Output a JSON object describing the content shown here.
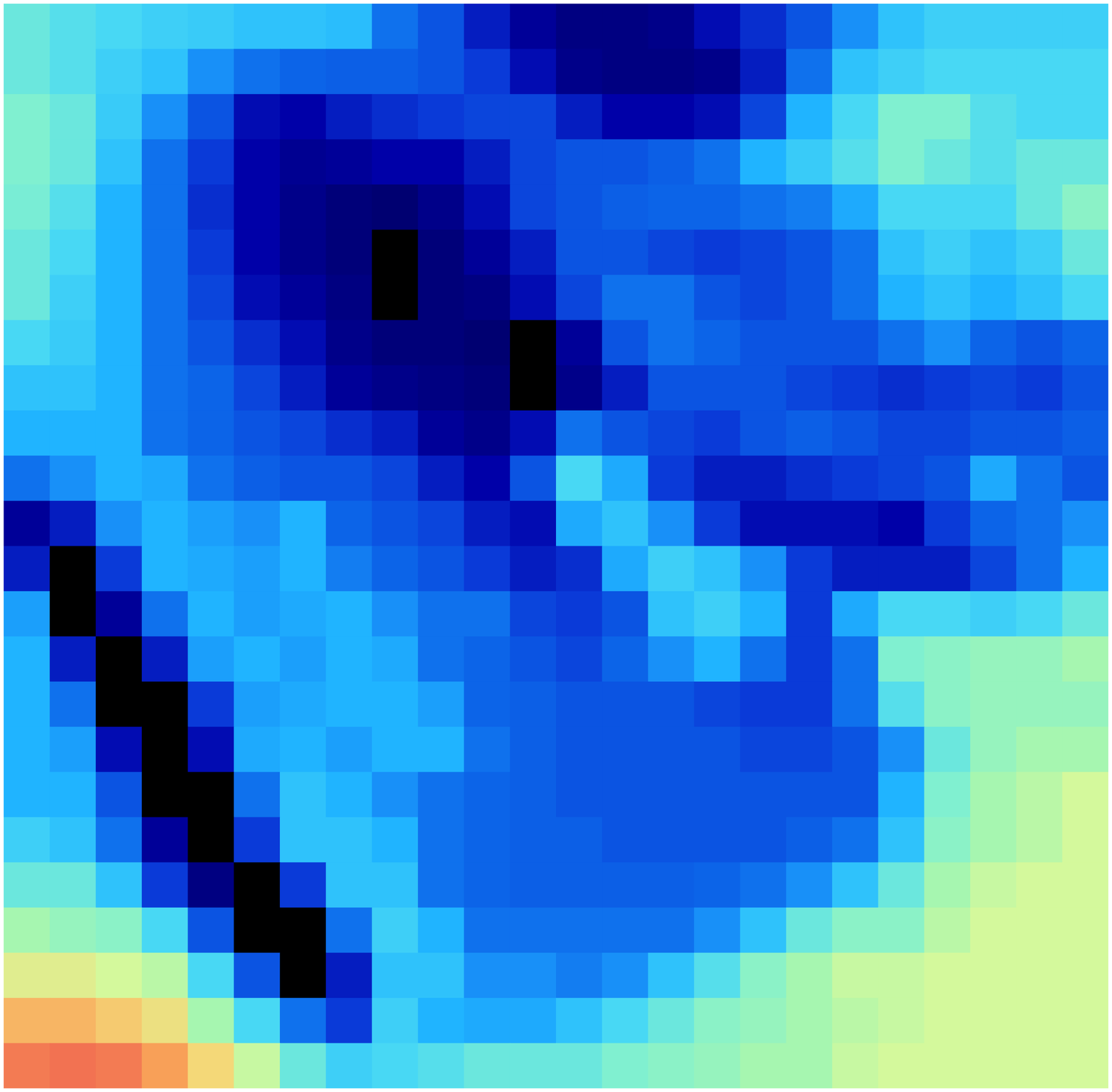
{
  "chart_data": {
    "type": "heatmap",
    "tick_labels": false,
    "zlim": [
      0,
      1
    ],
    "cells": [
      [
        0.55,
        0.52,
        0.5,
        0.48,
        0.47,
        0.45,
        0.45,
        0.44,
        0.3,
        0.25,
        0.15,
        0.08,
        0.05,
        0.05,
        0.06,
        0.12,
        0.18,
        0.25,
        0.35,
        0.45,
        0.48,
        0.48,
        0.48,
        0.48
      ],
      [
        0.55,
        0.52,
        0.48,
        0.45,
        0.35,
        0.3,
        0.28,
        0.27,
        0.27,
        0.25,
        0.2,
        0.12,
        0.06,
        0.05,
        0.05,
        0.06,
        0.15,
        0.3,
        0.45,
        0.48,
        0.5,
        0.5,
        0.5,
        0.5
      ],
      [
        0.58,
        0.55,
        0.47,
        0.35,
        0.25,
        0.12,
        0.1,
        0.15,
        0.18,
        0.2,
        0.22,
        0.22,
        0.15,
        0.1,
        0.1,
        0.12,
        0.22,
        0.42,
        0.5,
        0.58,
        0.58,
        0.52,
        0.5,
        0.5
      ],
      [
        0.58,
        0.55,
        0.45,
        0.3,
        0.2,
        0.1,
        0.07,
        0.08,
        0.1,
        0.1,
        0.15,
        0.22,
        0.25,
        0.25,
        0.27,
        0.3,
        0.42,
        0.47,
        0.52,
        0.58,
        0.55,
        0.52,
        0.55,
        0.55
      ],
      [
        0.57,
        0.52,
        0.42,
        0.3,
        0.18,
        0.1,
        0.06,
        0.04,
        0.03,
        0.06,
        0.12,
        0.22,
        0.25,
        0.27,
        0.28,
        0.28,
        0.3,
        0.32,
        0.4,
        0.5,
        0.5,
        0.5,
        0.55,
        0.6
      ],
      [
        0.55,
        0.5,
        0.42,
        0.3,
        0.2,
        0.1,
        0.06,
        0.04,
        -0.1,
        0.04,
        0.08,
        0.15,
        0.25,
        0.25,
        0.22,
        0.2,
        0.22,
        0.25,
        0.3,
        0.45,
        0.48,
        0.45,
        0.48,
        0.55
      ],
      [
        0.55,
        0.48,
        0.42,
        0.3,
        0.22,
        0.12,
        0.08,
        0.05,
        -0.1,
        0.04,
        0.05,
        0.12,
        0.22,
        0.3,
        0.3,
        0.25,
        0.22,
        0.25,
        0.3,
        0.42,
        0.45,
        0.42,
        0.45,
        0.5
      ],
      [
        0.5,
        0.47,
        0.42,
        0.3,
        0.25,
        0.18,
        0.12,
        0.06,
        0.04,
        0.04,
        0.03,
        -0.1,
        0.08,
        0.25,
        0.3,
        0.28,
        0.25,
        0.25,
        0.25,
        0.3,
        0.35,
        0.28,
        0.25,
        0.28
      ],
      [
        0.45,
        0.45,
        0.42,
        0.3,
        0.28,
        0.22,
        0.15,
        0.08,
        0.06,
        0.05,
        0.04,
        -0.1,
        0.06,
        0.15,
        0.25,
        0.25,
        0.25,
        0.22,
        0.2,
        0.18,
        0.2,
        0.22,
        0.2,
        0.25
      ],
      [
        0.42,
        0.42,
        0.42,
        0.3,
        0.28,
        0.25,
        0.22,
        0.18,
        0.15,
        0.08,
        0.06,
        0.12,
        0.3,
        0.25,
        0.22,
        0.2,
        0.25,
        0.27,
        0.25,
        0.22,
        0.22,
        0.25,
        0.25,
        0.27
      ],
      [
        0.3,
        0.35,
        0.42,
        0.4,
        0.3,
        0.27,
        0.25,
        0.25,
        0.22,
        0.15,
        0.1,
        0.25,
        0.5,
        0.4,
        0.2,
        0.15,
        0.15,
        0.18,
        0.2,
        0.22,
        0.25,
        0.4,
        0.3,
        0.25
      ],
      [
        0.08,
        0.15,
        0.35,
        0.42,
        0.38,
        0.35,
        0.42,
        0.28,
        0.25,
        0.22,
        0.15,
        0.12,
        0.4,
        0.45,
        0.35,
        0.2,
        0.12,
        0.12,
        0.12,
        0.1,
        0.2,
        0.28,
        0.3,
        0.35
      ],
      [
        0.15,
        -0.1,
        0.2,
        0.42,
        0.4,
        0.38,
        0.42,
        0.32,
        0.28,
        0.25,
        0.2,
        0.15,
        0.18,
        0.4,
        0.48,
        0.45,
        0.35,
        0.2,
        0.15,
        0.15,
        0.15,
        0.22,
        0.3,
        0.42
      ],
      [
        0.38,
        -0.1,
        0.08,
        0.3,
        0.42,
        0.38,
        0.4,
        0.42,
        0.35,
        0.3,
        0.3,
        0.22,
        0.2,
        0.25,
        0.45,
        0.48,
        0.42,
        0.2,
        0.4,
        0.5,
        0.5,
        0.48,
        0.5,
        0.55
      ],
      [
        0.42,
        0.15,
        -0.1,
        0.15,
        0.38,
        0.42,
        0.38,
        0.42,
        0.4,
        0.3,
        0.28,
        0.25,
        0.22,
        0.28,
        0.35,
        0.42,
        0.3,
        0.2,
        0.3,
        0.58,
        0.6,
        0.62,
        0.62,
        0.65
      ],
      [
        0.42,
        0.3,
        -0.1,
        -0.1,
        0.2,
        0.38,
        0.4,
        0.42,
        0.42,
        0.38,
        0.28,
        0.27,
        0.25,
        0.25,
        0.25,
        0.22,
        0.2,
        0.2,
        0.3,
        0.52,
        0.6,
        0.62,
        0.62,
        0.62
      ],
      [
        0.42,
        0.38,
        0.12,
        -0.1,
        0.12,
        0.4,
        0.42,
        0.38,
        0.42,
        0.42,
        0.3,
        0.27,
        0.25,
        0.25,
        0.25,
        0.25,
        0.22,
        0.22,
        0.25,
        0.35,
        0.55,
        0.62,
        0.65,
        0.65
      ],
      [
        0.42,
        0.42,
        0.25,
        -0.1,
        -0.1,
        0.3,
        0.45,
        0.42,
        0.35,
        0.3,
        0.28,
        0.27,
        0.25,
        0.25,
        0.25,
        0.25,
        0.25,
        0.25,
        0.25,
        0.42,
        0.58,
        0.65,
        0.68,
        0.72
      ],
      [
        0.48,
        0.45,
        0.3,
        0.08,
        -0.1,
        0.2,
        0.45,
        0.45,
        0.42,
        0.3,
        0.28,
        0.27,
        0.27,
        0.25,
        0.25,
        0.25,
        0.25,
        0.27,
        0.3,
        0.45,
        0.6,
        0.65,
        0.68,
        0.72
      ],
      [
        0.55,
        0.55,
        0.45,
        0.2,
        0.05,
        -0.1,
        0.2,
        0.45,
        0.45,
        0.3,
        0.28,
        0.27,
        0.27,
        0.27,
        0.27,
        0.28,
        0.3,
        0.35,
        0.45,
        0.55,
        0.65,
        0.7,
        0.72,
        0.72
      ],
      [
        0.65,
        0.62,
        0.6,
        0.5,
        0.25,
        -0.1,
        -0.1,
        0.3,
        0.48,
        0.42,
        0.3,
        0.3,
        0.3,
        0.3,
        0.3,
        0.35,
        0.45,
        0.55,
        0.6,
        0.6,
        0.68,
        0.72,
        0.72,
        0.72
      ],
      [
        0.75,
        0.75,
        0.72,
        0.68,
        0.5,
        0.25,
        -0.1,
        0.15,
        0.45,
        0.45,
        0.35,
        0.35,
        0.32,
        0.35,
        0.45,
        0.52,
        0.6,
        0.65,
        0.7,
        0.7,
        0.72,
        0.72,
        0.72,
        0.72
      ],
      [
        0.85,
        0.85,
        0.82,
        0.78,
        0.65,
        0.5,
        0.3,
        0.2,
        0.48,
        0.42,
        0.4,
        0.4,
        0.45,
        0.5,
        0.55,
        0.6,
        0.62,
        0.65,
        0.68,
        0.7,
        0.72,
        0.72,
        0.72,
        0.72
      ],
      [
        0.92,
        0.93,
        0.92,
        0.88,
        0.8,
        0.7,
        0.55,
        0.48,
        0.5,
        0.52,
        0.55,
        0.55,
        0.55,
        0.58,
        0.6,
        0.62,
        0.65,
        0.65,
        0.7,
        0.72,
        0.72,
        0.72,
        0.72,
        0.72
      ]
    ]
  }
}
